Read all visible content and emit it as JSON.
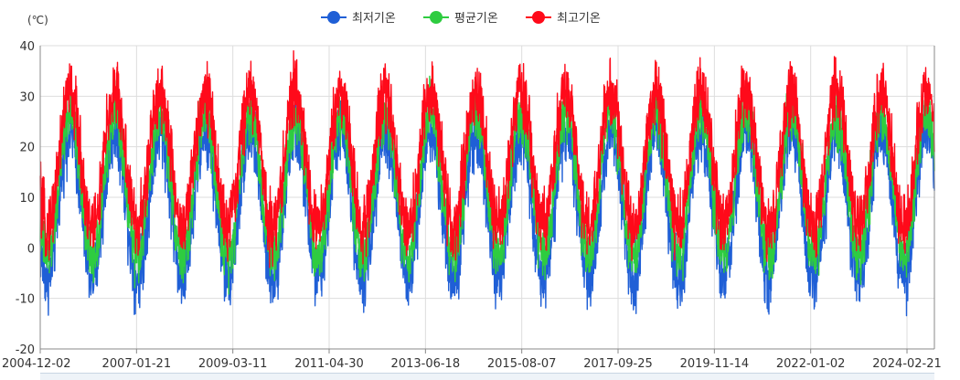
{
  "chart_data": {
    "type": "line",
    "y_unit": "(℃)",
    "ylim": [
      -20,
      40
    ],
    "y_ticks": [
      40,
      30,
      20,
      10,
      0,
      -10,
      -20
    ],
    "x_start": "2004-12-02",
    "x_end": "2024-09-30",
    "x_ticks": [
      "2004-12-02",
      "2007-01-21",
      "2009-03-11",
      "2011-04-30",
      "2013-06-18",
      "2015-08-07",
      "2017-09-25",
      "2019-11-14",
      "2022-01-02",
      "2024-02-21"
    ],
    "grid": true,
    "legend_position": "top-center",
    "series": [
      {
        "name": "최저기온",
        "color": "#1f5fd6",
        "trough": -6,
        "crest": 23,
        "noise": 3.2
      },
      {
        "name": "평균기온",
        "color": "#2ecc40",
        "trough": -1.5,
        "crest": 26.5,
        "noise": 2.8
      },
      {
        "name": "최고기온",
        "color": "#ff0a1a",
        "trough": 4,
        "crest": 31,
        "noise": 3.2
      }
    ]
  }
}
